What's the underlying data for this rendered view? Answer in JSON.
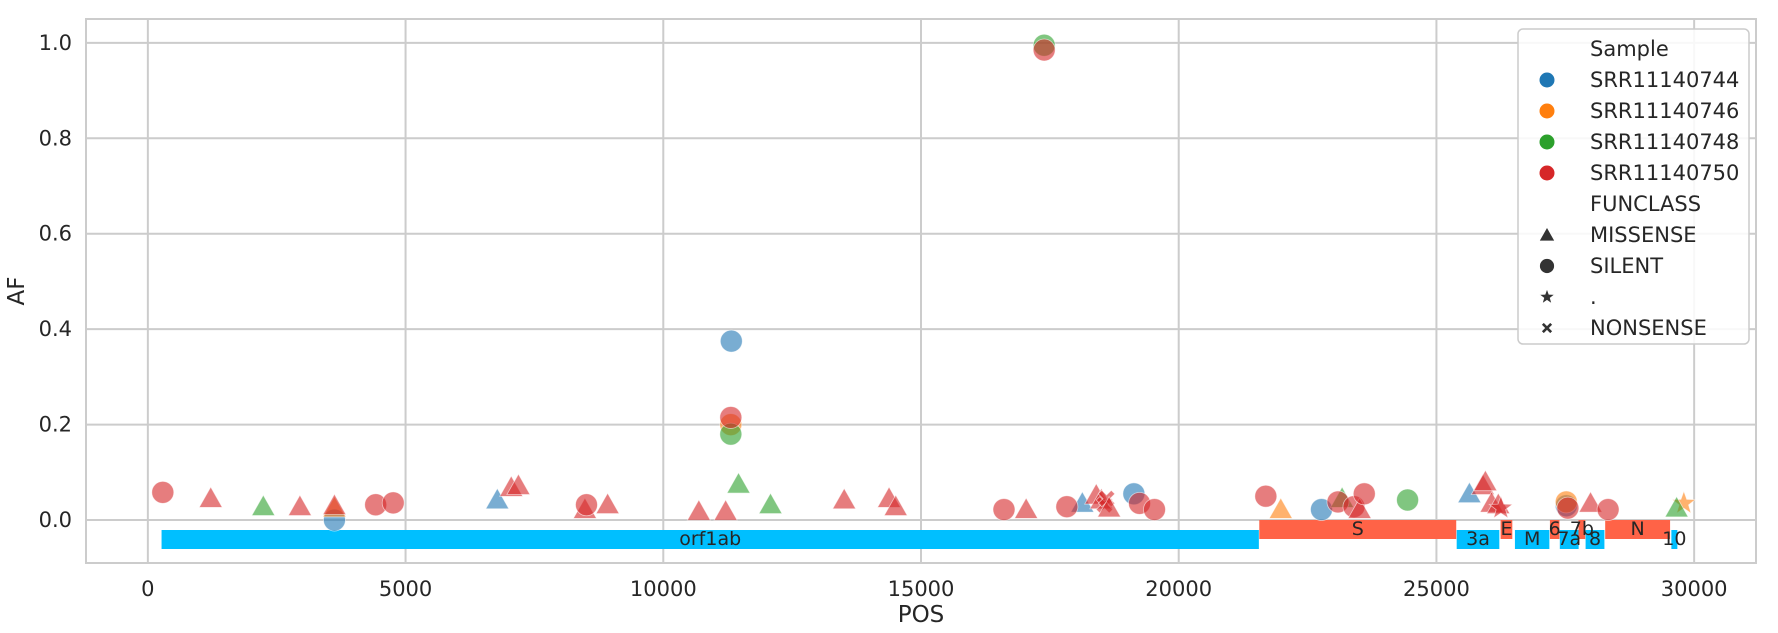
{
  "chart_data": {
    "type": "scatter",
    "xlabel": "POS",
    "ylabel": "AF",
    "xlim": [
      -1200,
      31200
    ],
    "ylim": [
      -0.09,
      1.05
    ],
    "xticks": [
      0,
      5000,
      10000,
      15000,
      20000,
      25000,
      30000
    ],
    "xtick_labels": [
      "0",
      "5000",
      "10000",
      "15000",
      "20000",
      "25000",
      "30000"
    ],
    "yticks": [
      0.0,
      0.2,
      0.4,
      0.6,
      0.8,
      1.0
    ],
    "ytick_labels": [
      "0.0",
      "0.2",
      "0.4",
      "0.6",
      "0.8",
      "1.0"
    ],
    "grid": true,
    "legend": {
      "placement": "top-right",
      "hue_title": "Sample",
      "style_title": "FUNCLASS",
      "samples": [
        {
          "name": "SRR11140744",
          "color": "#1f77b4"
        },
        {
          "name": "SRR11140746",
          "color": "#ff7f0e"
        },
        {
          "name": "SRR11140748",
          "color": "#2ca02c"
        },
        {
          "name": "SRR11140750",
          "color": "#d62728"
        }
      ],
      "classes": [
        {
          "name": "MISSENSE",
          "marker": "triangle"
        },
        {
          "name": "SILENT",
          "marker": "circle"
        },
        {
          "name": ".",
          "marker": "star"
        },
        {
          "name": "NONSENSE",
          "marker": "x"
        }
      ]
    },
    "genes": [
      {
        "name": "orf1ab",
        "start": 266,
        "end": 21555,
        "color": "#00bfff",
        "row": 0
      },
      {
        "name": "S",
        "start": 21563,
        "end": 25384,
        "color": "#ff6347",
        "row": 1
      },
      {
        "name": "3a",
        "start": 25393,
        "end": 26220,
        "color": "#00bfff",
        "row": 0
      },
      {
        "name": "E",
        "start": 26245,
        "end": 26472,
        "color": "#ff6347",
        "row": 1
      },
      {
        "name": "M",
        "start": 26523,
        "end": 27191,
        "color": "#00bfff",
        "row": 0
      },
      {
        "name": "6",
        "start": 27202,
        "end": 27387,
        "color": "#ff6347",
        "row": 1
      },
      {
        "name": "7a",
        "start": 27394,
        "end": 27759,
        "color": "#00bfff",
        "row": 0
      },
      {
        "name": "7b",
        "start": 27756,
        "end": 27887,
        "color": "#ff6347",
        "row": 1
      },
      {
        "name": "8",
        "start": 27894,
        "end": 28259,
        "color": "#00bfff",
        "row": 0
      },
      {
        "name": "N",
        "start": 28274,
        "end": 29533,
        "color": "#ff6347",
        "row": 1
      },
      {
        "name": "10",
        "start": 29558,
        "end": 29674,
        "color": "#00bfff",
        "row": 0
      }
    ],
    "points": [
      {
        "x": 3620,
        "y": 0.0,
        "sample": "SRR11140744",
        "class": "SILENT"
      },
      {
        "x": 6780,
        "y": 0.042,
        "sample": "SRR11140744",
        "class": "MISSENSE"
      },
      {
        "x": 11320,
        "y": 0.375,
        "sample": "SRR11140744",
        "class": "SILENT"
      },
      {
        "x": 18130,
        "y": 0.035,
        "sample": "SRR11140744",
        "class": "MISSENSE"
      },
      {
        "x": 19130,
        "y": 0.055,
        "sample": "SRR11140744",
        "class": "SILENT"
      },
      {
        "x": 22770,
        "y": 0.022,
        "sample": "SRR11140744",
        "class": "SILENT"
      },
      {
        "x": 25640,
        "y": 0.055,
        "sample": "SRR11140744",
        "class": "MISSENSE"
      },
      {
        "x": 27520,
        "y": 0.03,
        "sample": "SRR11140744",
        "class": "SILENT"
      },
      {
        "x": 3620,
        "y": 0.025,
        "sample": "SRR11140746",
        "class": "MISSENSE"
      },
      {
        "x": 11310,
        "y": 0.2,
        "sample": "SRR11140746",
        "class": "SILENT"
      },
      {
        "x": 21980,
        "y": 0.022,
        "sample": "SRR11140746",
        "class": "MISSENSE"
      },
      {
        "x": 27520,
        "y": 0.038,
        "sample": "SRR11140746",
        "class": "SILENT"
      },
      {
        "x": 29800,
        "y": 0.035,
        "sample": "SRR11140746",
        "class": "."
      },
      {
        "x": 2240,
        "y": 0.028,
        "sample": "SRR11140748",
        "class": "MISSENSE"
      },
      {
        "x": 11310,
        "y": 0.18,
        "sample": "SRR11140748",
        "class": "SILENT"
      },
      {
        "x": 11460,
        "y": 0.075,
        "sample": "SRR11140748",
        "class": "MISSENSE"
      },
      {
        "x": 12080,
        "y": 0.032,
        "sample": "SRR11140748",
        "class": "MISSENSE"
      },
      {
        "x": 17390,
        "y": 0.995,
        "sample": "SRR11140748",
        "class": "SILENT"
      },
      {
        "x": 23170,
        "y": 0.045,
        "sample": "SRR11140748",
        "class": "MISSENSE"
      },
      {
        "x": 24440,
        "y": 0.042,
        "sample": "SRR11140748",
        "class": "SILENT"
      },
      {
        "x": 29660,
        "y": 0.025,
        "sample": "SRR11140748",
        "class": "MISSENSE"
      },
      {
        "x": 290,
        "y": 0.058,
        "sample": "SRR11140750",
        "class": "SILENT"
      },
      {
        "x": 1220,
        "y": 0.045,
        "sample": "SRR11140750",
        "class": "MISSENSE"
      },
      {
        "x": 2950,
        "y": 0.028,
        "sample": "SRR11140750",
        "class": "MISSENSE"
      },
      {
        "x": 3620,
        "y": 0.03,
        "sample": "SRR11140750",
        "class": "MISSENSE"
      },
      {
        "x": 4420,
        "y": 0.032,
        "sample": "SRR11140750",
        "class": "SILENT"
      },
      {
        "x": 4760,
        "y": 0.036,
        "sample": "SRR11140750",
        "class": "SILENT"
      },
      {
        "x": 7050,
        "y": 0.068,
        "sample": "SRR11140750",
        "class": "MISSENSE"
      },
      {
        "x": 7190,
        "y": 0.072,
        "sample": "SRR11140750",
        "class": "MISSENSE"
      },
      {
        "x": 8480,
        "y": 0.022,
        "sample": "SRR11140750",
        "class": "MISSENSE"
      },
      {
        "x": 8510,
        "y": 0.032,
        "sample": "SRR11140750",
        "class": "SILENT"
      },
      {
        "x": 8920,
        "y": 0.032,
        "sample": "SRR11140750",
        "class": "MISSENSE"
      },
      {
        "x": 10690,
        "y": 0.018,
        "sample": "SRR11140750",
        "class": "MISSENSE"
      },
      {
        "x": 11210,
        "y": 0.018,
        "sample": "SRR11140750",
        "class": "MISSENSE"
      },
      {
        "x": 11310,
        "y": 0.215,
        "sample": "SRR11140750",
        "class": "SILENT"
      },
      {
        "x": 13510,
        "y": 0.042,
        "sample": "SRR11140750",
        "class": "MISSENSE"
      },
      {
        "x": 14380,
        "y": 0.045,
        "sample": "SRR11140750",
        "class": "MISSENSE"
      },
      {
        "x": 14510,
        "y": 0.028,
        "sample": "SRR11140750",
        "class": "MISSENSE"
      },
      {
        "x": 16610,
        "y": 0.022,
        "sample": "SRR11140750",
        "class": "SILENT"
      },
      {
        "x": 17040,
        "y": 0.022,
        "sample": "SRR11140750",
        "class": "MISSENSE"
      },
      {
        "x": 17390,
        "y": 0.985,
        "sample": "SRR11140750",
        "class": "SILENT"
      },
      {
        "x": 17830,
        "y": 0.028,
        "sample": "SRR11140750",
        "class": "SILENT"
      },
      {
        "x": 18400,
        "y": 0.052,
        "sample": "SRR11140750",
        "class": "MISSENSE"
      },
      {
        "x": 18500,
        "y": 0.042,
        "sample": "SRR11140750",
        "class": "MISSENSE"
      },
      {
        "x": 18560,
        "y": 0.032,
        "sample": "SRR11140750",
        "class": "NONSENSE"
      },
      {
        "x": 18600,
        "y": 0.045,
        "sample": "SRR11140750",
        "class": "NONSENSE"
      },
      {
        "x": 18650,
        "y": 0.025,
        "sample": "SRR11140750",
        "class": "MISSENSE"
      },
      {
        "x": 19240,
        "y": 0.035,
        "sample": "SRR11140750",
        "class": "SILENT"
      },
      {
        "x": 19530,
        "y": 0.022,
        "sample": "SRR11140750",
        "class": "SILENT"
      },
      {
        "x": 21690,
        "y": 0.05,
        "sample": "SRR11140750",
        "class": "SILENT"
      },
      {
        "x": 23090,
        "y": 0.038,
        "sample": "SRR11140750",
        "class": "SILENT"
      },
      {
        "x": 23400,
        "y": 0.028,
        "sample": "SRR11140750",
        "class": "SILENT"
      },
      {
        "x": 23510,
        "y": 0.022,
        "sample": "SRR11140750",
        "class": "MISSENSE"
      },
      {
        "x": 23600,
        "y": 0.055,
        "sample": "SRR11140750",
        "class": "SILENT"
      },
      {
        "x": 25900,
        "y": 0.072,
        "sample": "SRR11140750",
        "class": "MISSENSE"
      },
      {
        "x": 25950,
        "y": 0.08,
        "sample": "SRR11140750",
        "class": "MISSENSE"
      },
      {
        "x": 26070,
        "y": 0.035,
        "sample": "SRR11140750",
        "class": "MISSENSE"
      },
      {
        "x": 26200,
        "y": 0.032,
        "sample": "SRR11140750",
        "class": "MISSENSE"
      },
      {
        "x": 26250,
        "y": 0.025,
        "sample": "SRR11140750",
        "class": "."
      },
      {
        "x": 27550,
        "y": 0.025,
        "sample": "SRR11140750",
        "class": "SILENT"
      },
      {
        "x": 27990,
        "y": 0.035,
        "sample": "SRR11140750",
        "class": "MISSENSE"
      },
      {
        "x": 28330,
        "y": 0.022,
        "sample": "SRR11140750",
        "class": "SILENT"
      }
    ]
  }
}
